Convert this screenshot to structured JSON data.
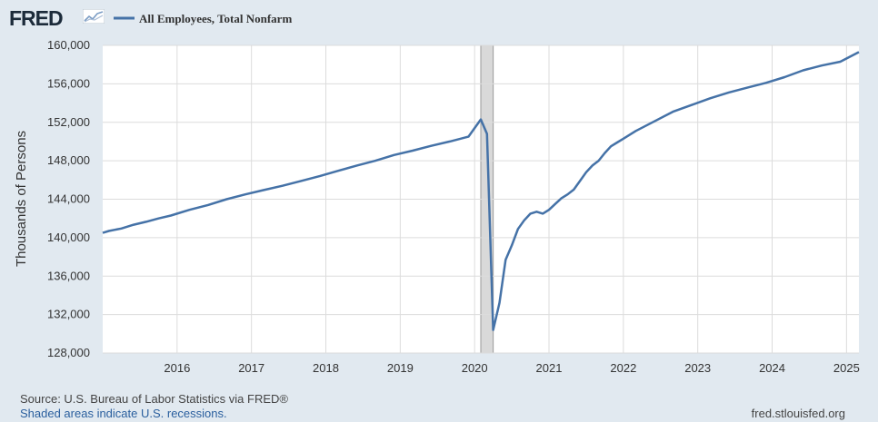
{
  "logo": {
    "text": "FRED"
  },
  "legend": {
    "label": "All Employees, Total Nonfarm"
  },
  "footer": {
    "source": "Source: U.S. Bureau of Labor Statistics via FRED®",
    "recession_note": "Shaded areas indicate U.S. recessions.",
    "site": "fred.stlouisfed.org"
  },
  "colors": {
    "background": "#e1e9f0",
    "plot_background": "#ffffff",
    "line": "#4572a7",
    "grid": "#dcdcdc",
    "recession_shade": "#d9d9d9"
  },
  "chart_data": {
    "type": "line",
    "title": "",
    "ylabel": "Thousands of Persons",
    "xlabel": "",
    "ylim": [
      128000,
      160000
    ],
    "xlim": [
      "2015-01",
      "2025-03"
    ],
    "yticks": [
      "128,000",
      "132,000",
      "136,000",
      "140,000",
      "144,000",
      "148,000",
      "152,000",
      "156,000",
      "160,000"
    ],
    "ytick_values": [
      128000,
      132000,
      136000,
      140000,
      144000,
      148000,
      152000,
      156000,
      160000
    ],
    "xticks": [
      "2016",
      "2017",
      "2018",
      "2019",
      "2020",
      "2021",
      "2022",
      "2023",
      "2024",
      "2025"
    ],
    "recessions": [
      {
        "start": "2020-02",
        "end": "2020-04"
      }
    ],
    "grid": true,
    "legend_position": "top-left",
    "series": [
      {
        "name": "All Employees, Total Nonfarm",
        "points": [
          [
            "2015-01",
            140500
          ],
          [
            "2015-02",
            140700
          ],
          [
            "2015-04",
            140950
          ],
          [
            "2015-06",
            141350
          ],
          [
            "2015-08",
            141650
          ],
          [
            "2015-10",
            142000
          ],
          [
            "2015-12",
            142300
          ],
          [
            "2016-03",
            142900
          ],
          [
            "2016-06",
            143400
          ],
          [
            "2016-09",
            144000
          ],
          [
            "2016-12",
            144500
          ],
          [
            "2017-03",
            144950
          ],
          [
            "2017-06",
            145400
          ],
          [
            "2017-09",
            145900
          ],
          [
            "2017-12",
            146400
          ],
          [
            "2018-03",
            146950
          ],
          [
            "2018-06",
            147500
          ],
          [
            "2018-09",
            148000
          ],
          [
            "2018-12",
            148600
          ],
          [
            "2019-03",
            149050
          ],
          [
            "2019-06",
            149550
          ],
          [
            "2019-09",
            150000
          ],
          [
            "2019-12",
            150500
          ],
          [
            "2020-02",
            152300
          ],
          [
            "2020-03",
            150800
          ],
          [
            "2020-04",
            130400
          ],
          [
            "2020-05",
            133200
          ],
          [
            "2020-06",
            137700
          ],
          [
            "2020-07",
            139200
          ],
          [
            "2020-08",
            140900
          ],
          [
            "2020-09",
            141800
          ],
          [
            "2020-10",
            142500
          ],
          [
            "2020-11",
            142700
          ],
          [
            "2020-12",
            142500
          ],
          [
            "2021-01",
            142900
          ],
          [
            "2021-02",
            143500
          ],
          [
            "2021-03",
            144100
          ],
          [
            "2021-04",
            144500
          ],
          [
            "2021-05",
            145000
          ],
          [
            "2021-06",
            145900
          ],
          [
            "2021-07",
            146800
          ],
          [
            "2021-08",
            147500
          ],
          [
            "2021-09",
            148000
          ],
          [
            "2021-10",
            148800
          ],
          [
            "2021-11",
            149500
          ],
          [
            "2021-12",
            149900
          ],
          [
            "2022-01",
            150300
          ],
          [
            "2022-03",
            151100
          ],
          [
            "2022-06",
            152100
          ],
          [
            "2022-09",
            153100
          ],
          [
            "2022-12",
            153800
          ],
          [
            "2023-03",
            154500
          ],
          [
            "2023-06",
            155100
          ],
          [
            "2023-09",
            155600
          ],
          [
            "2023-12",
            156100
          ],
          [
            "2024-03",
            156700
          ],
          [
            "2024-06",
            157400
          ],
          [
            "2024-09",
            157900
          ],
          [
            "2024-12",
            158300
          ],
          [
            "2025-03",
            159300
          ]
        ]
      }
    ]
  }
}
